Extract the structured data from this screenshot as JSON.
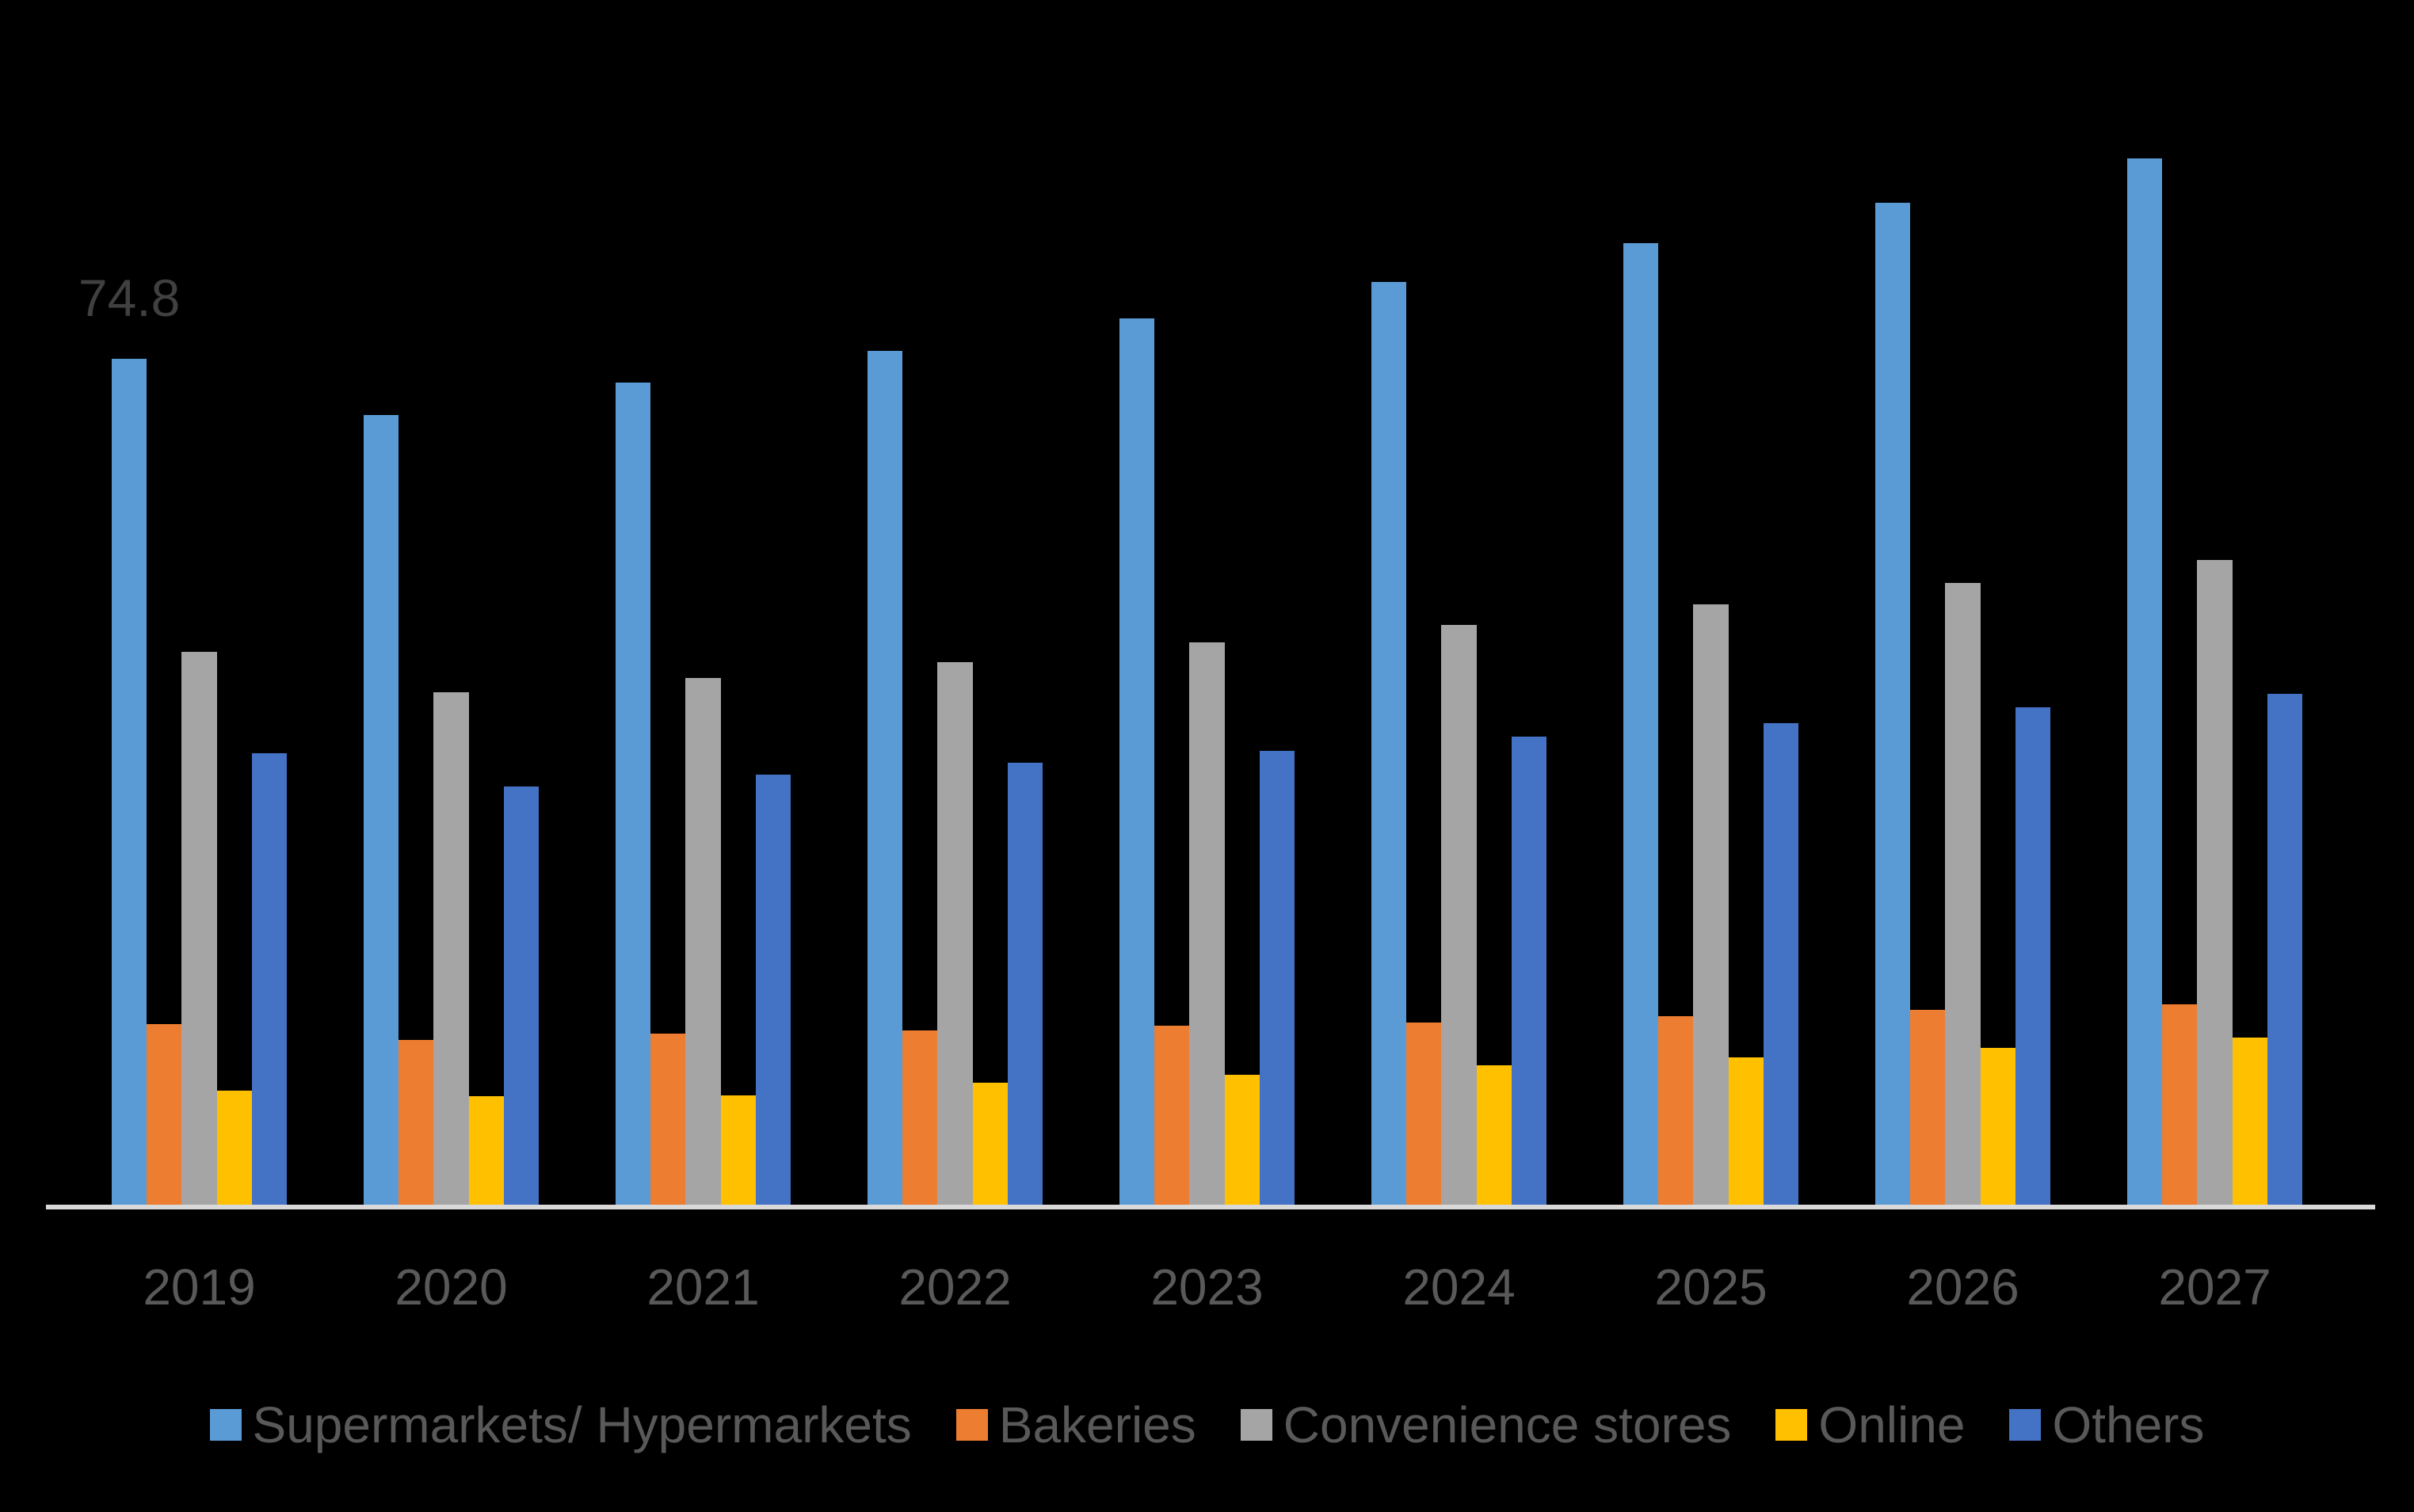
{
  "chart_data": {
    "type": "bar",
    "title": "",
    "xlabel": "",
    "ylabel": "",
    "grid": false,
    "legend_position": "bottom",
    "ylim": [
      0,
      100
    ],
    "categories": [
      "2019",
      "2020",
      "2021",
      "2022",
      "2023",
      "2024",
      "2025",
      "2026",
      "2027"
    ],
    "series": [
      {
        "name": "Supermarkets/ Hypermarkets",
        "color": "#5B9BD5",
        "values": [
          74.8,
          69.8,
          72.7,
          75.5,
          78.4,
          81.6,
          85.0,
          88.6,
          92.5
        ]
      },
      {
        "name": "Bakeries",
        "color": "#ED7D31",
        "values": [
          16.0,
          14.6,
          15.1,
          15.4,
          15.8,
          16.1,
          16.7,
          17.2,
          17.7
        ]
      },
      {
        "name": "Convenience stores",
        "color": "#A5A5A5",
        "values": [
          48.9,
          45.3,
          46.6,
          48.0,
          49.7,
          51.3,
          53.1,
          55.0,
          57.0
        ]
      },
      {
        "name": "Online",
        "color": "#FFC000",
        "values": [
          10.1,
          9.6,
          9.7,
          10.8,
          11.5,
          12.3,
          13.0,
          13.9,
          14.8
        ]
      },
      {
        "name": "Others",
        "color": "#4472C4",
        "values": [
          39.9,
          37.0,
          38.0,
          39.1,
          40.1,
          41.4,
          42.6,
          44.0,
          45.2
        ]
      }
    ],
    "data_labels": [
      {
        "series": "Supermarkets/ Hypermarkets",
        "category": "2019",
        "text": "74.8",
        "value": 74.8
      }
    ]
  },
  "colors": {
    "background": "#000000",
    "axis_line": "#D9D9D9",
    "tick_label": "#595959",
    "legend_label": "#595959",
    "data_label": "#404040"
  }
}
